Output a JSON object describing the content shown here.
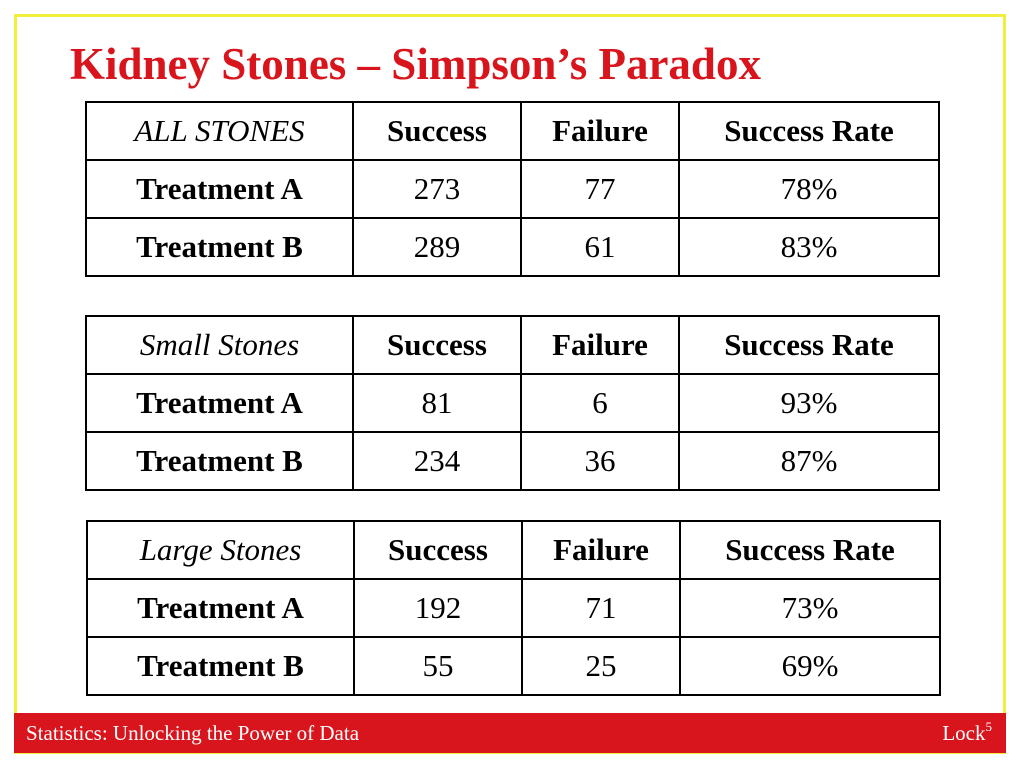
{
  "slide": {
    "title": "Kidney Stones – Simpson’s Paradox"
  },
  "tables": [
    {
      "label": "ALL STONES",
      "headers": [
        "Success",
        "Failure",
        "Success Rate"
      ],
      "rows": [
        {
          "name": "Treatment A",
          "success": "273",
          "failure": "77",
          "rate": "78%"
        },
        {
          "name": "Treatment B",
          "success": "289",
          "failure": "61",
          "rate": "83%"
        }
      ]
    },
    {
      "label": "Small Stones",
      "headers": [
        "Success",
        "Failure",
        "Success Rate"
      ],
      "rows": [
        {
          "name": "Treatment A",
          "success": "81",
          "failure": "6",
          "rate": "93%"
        },
        {
          "name": "Treatment B",
          "success": "234",
          "failure": "36",
          "rate": "87%"
        }
      ]
    },
    {
      "label": "Large Stones",
      "headers": [
        "Success",
        "Failure",
        "Success Rate"
      ],
      "rows": [
        {
          "name": "Treatment A",
          "success": "192",
          "failure": "71",
          "rate": "73%"
        },
        {
          "name": "Treatment B",
          "success": "55",
          "failure": "25",
          "rate": "69%"
        }
      ]
    }
  ],
  "footer": {
    "left": "Statistics: Unlocking the Power of Data",
    "right": "Lock",
    "right_superscript": "5"
  },
  "colors": {
    "title": "#d8141c",
    "footer_bg": "#d8141c",
    "border": "#f2ee3c"
  }
}
